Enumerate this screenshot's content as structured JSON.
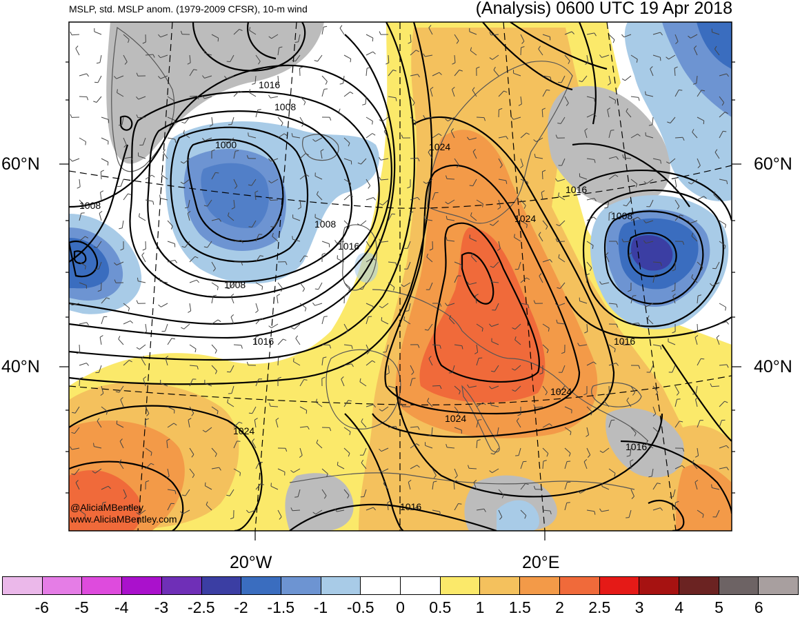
{
  "header": {
    "left_title": "MSLP, std. MSLP anom. (1979-2009 CFSR), 10-m wind",
    "right_title": "(Analysis) 0600 UTC 19 Apr 2018"
  },
  "axes": {
    "lat_labels": {
      "left_60": "60°N",
      "right_60": "60°N",
      "left_40": "40°N",
      "right_40": "40°N"
    },
    "lon_labels": {
      "w20": "20°W",
      "e20": "20°E"
    }
  },
  "credits": {
    "handle": "@AliciaMBentley",
    "website": "www.AliciaMBentley.com"
  },
  "isobar_labels": [
    "1016",
    "1008",
    "1000",
    "1008",
    "1008",
    "1016",
    "1008",
    "1016",
    "1024",
    "1024",
    "1016",
    "1008",
    "1016",
    "1024",
    "1024",
    "1016",
    "1024",
    "1016"
  ],
  "colorbar": {
    "colors": [
      "#ebb8ea",
      "#e57de6",
      "#de4bdd",
      "#aa11cc",
      "#6f2fb7",
      "#3b3ea3",
      "#3a6dbf",
      "#6d94d2",
      "#a8cbe7",
      "#ffffff",
      "#ffffff",
      "#fbe96a",
      "#f4c15d",
      "#f39a48",
      "#f06a3a",
      "#e51a17",
      "#a61211",
      "#6b2322",
      "#6d6364",
      "#a89f9f"
    ],
    "tick_labels": [
      "-6",
      "-5",
      "-4",
      "-3",
      "-2.5",
      "-2",
      "-1.5",
      "-1",
      "-0.5",
      "0",
      "0.5",
      "1",
      "1.5",
      "2",
      "2.5",
      "3",
      "4",
      "5",
      "6"
    ]
  }
}
